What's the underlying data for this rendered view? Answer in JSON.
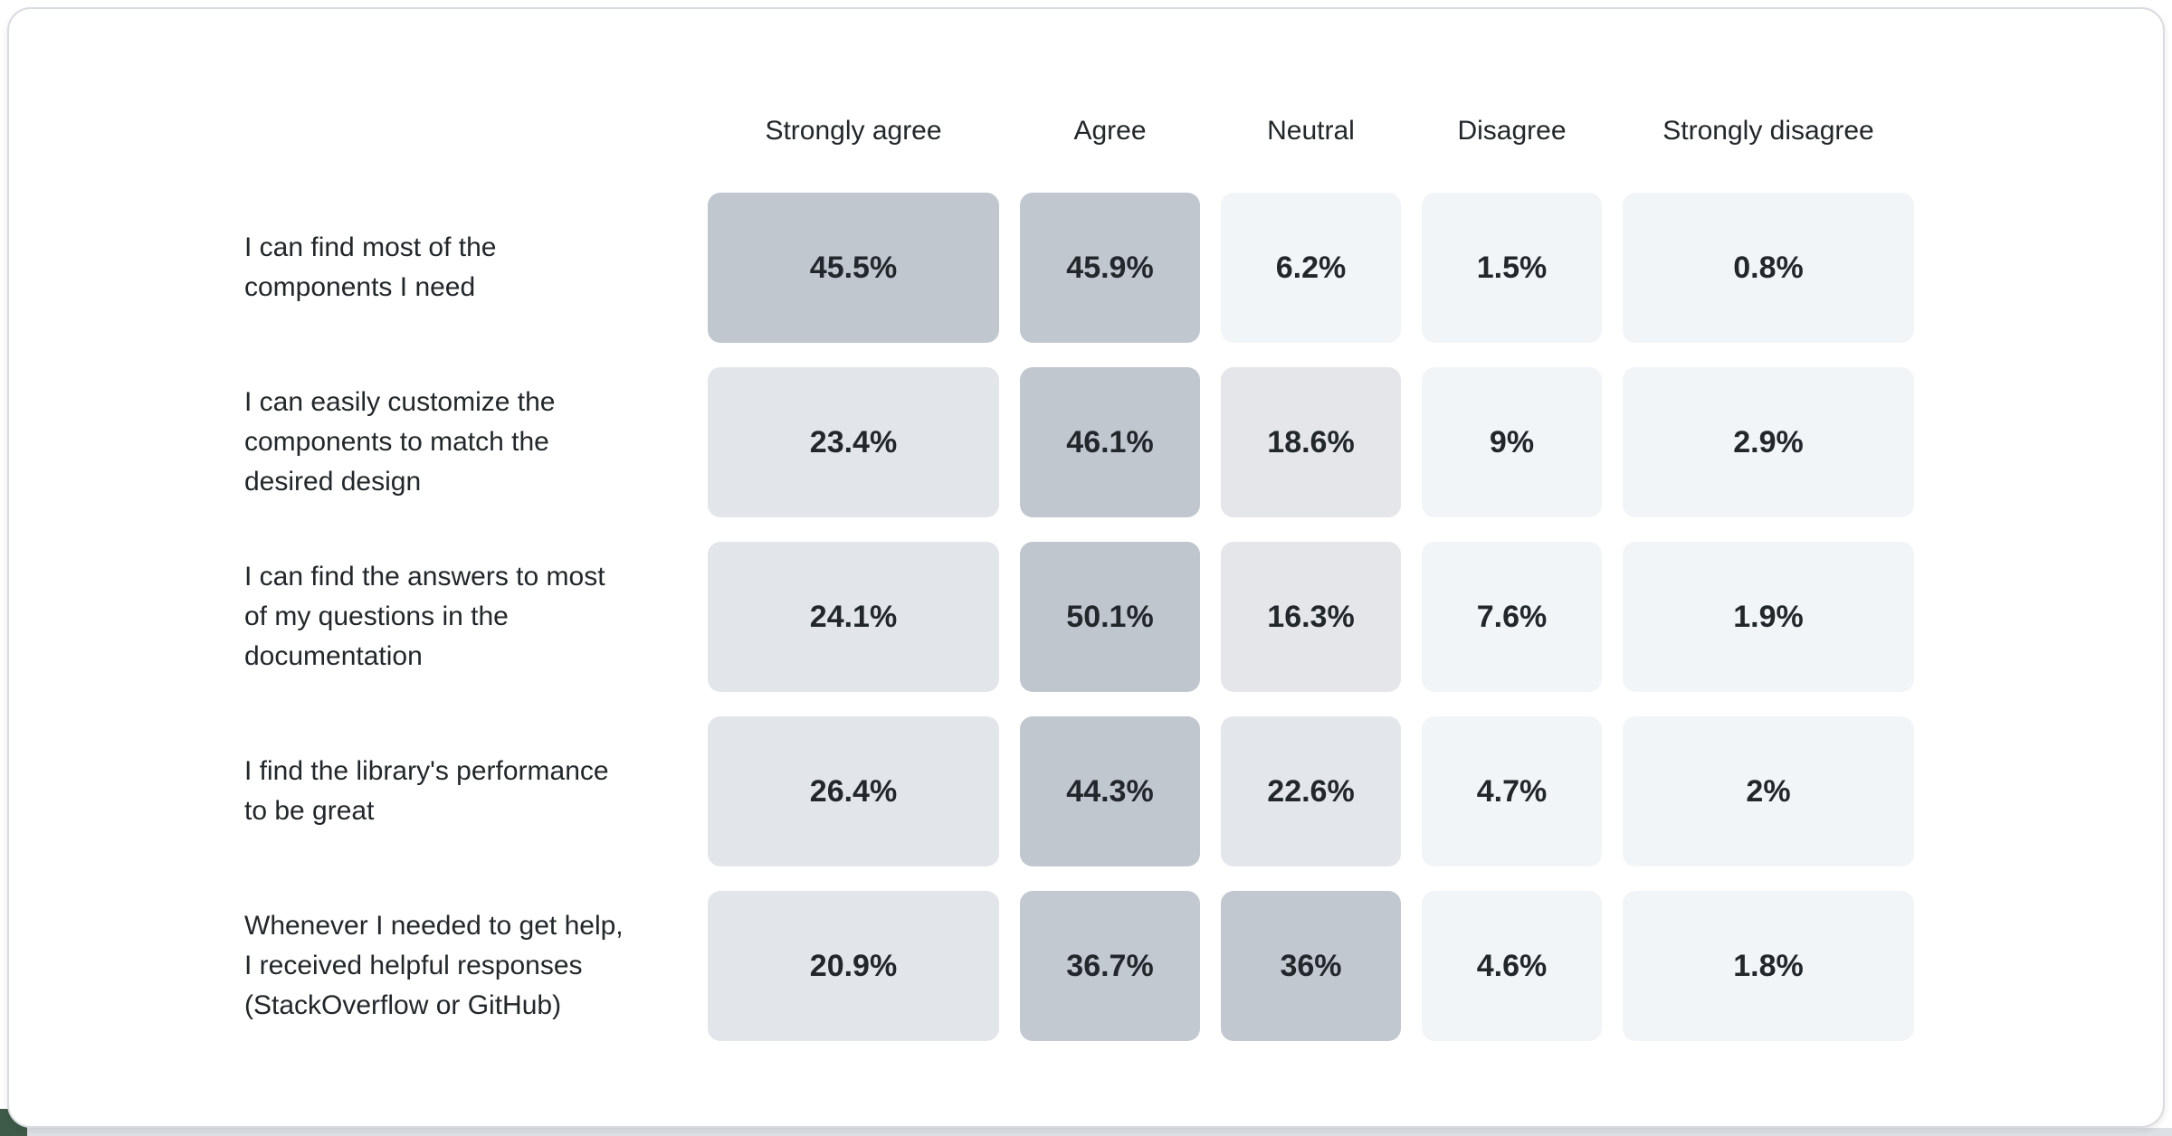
{
  "page": {
    "card_background": "#ffffff",
    "card_border_color": "#d8dbe0",
    "bottom_strip_color": "#dde0e4",
    "corner_accent_color": "#3e5b47",
    "text_color": "#21272a"
  },
  "chart_data": {
    "type": "heatmap",
    "title": "",
    "unit": "%",
    "legend_position": "none",
    "grid": false,
    "columns": [
      "Strongly agree",
      "Agree",
      "Neutral",
      "Disagree",
      "Strongly disagree"
    ],
    "rows": [
      {
        "label": "I can find most of the\ncomponents I need",
        "values": [
          45.5,
          45.9,
          6.2,
          1.5,
          0.8
        ],
        "cells": [
          {
            "value": 45.5,
            "display": "45.5%",
            "color": "#c0c7cf"
          },
          {
            "value": 45.9,
            "display": "45.9%",
            "color": "#c1c7cf"
          },
          {
            "value": 6.2,
            "display": "6.2%",
            "color": "#f2f5f8"
          },
          {
            "value": 1.5,
            "display": "1.5%",
            "color": "#f2f5f8"
          },
          {
            "value": 0.8,
            "display": "0.8%",
            "color": "#f2f5f8"
          }
        ]
      },
      {
        "label": "I can easily customize the\ncomponents to match the\ndesired design",
        "values": [
          23.4,
          46.1,
          18.6,
          9,
          2.9
        ],
        "cells": [
          {
            "value": 23.4,
            "display": "23.4%",
            "color": "#e2e6ea"
          },
          {
            "value": 46.1,
            "display": "46.1%",
            "color": "#c0c7cf"
          },
          {
            "value": 18.6,
            "display": "18.6%",
            "color": "#e4e6ea"
          },
          {
            "value": 9,
            "display": "9%",
            "color": "#f2f5f8"
          },
          {
            "value": 2.9,
            "display": "2.9%",
            "color": "#f2f5f8"
          }
        ]
      },
      {
        "label": "I can find the answers to most\nof my questions in the\ndocumentation",
        "values": [
          24.1,
          50.1,
          16.3,
          7.6,
          1.9
        ],
        "cells": [
          {
            "value": 24.1,
            "display": "24.1%",
            "color": "#e2e6ea"
          },
          {
            "value": 50.1,
            "display": "50.1%",
            "color": "#bfc6ce"
          },
          {
            "value": 16.3,
            "display": "16.3%",
            "color": "#e4e6ea"
          },
          {
            "value": 7.6,
            "display": "7.6%",
            "color": "#f2f5f8"
          },
          {
            "value": 1.9,
            "display": "1.9%",
            "color": "#f2f5f8"
          }
        ]
      },
      {
        "label": "I find the library's performance\nto be great",
        "values": [
          26.4,
          44.3,
          22.6,
          4.7,
          2
        ],
        "cells": [
          {
            "value": 26.4,
            "display": "26.4%",
            "color": "#e2e6ea"
          },
          {
            "value": 44.3,
            "display": "44.3%",
            "color": "#c1c7cf"
          },
          {
            "value": 22.6,
            "display": "22.6%",
            "color": "#e3e6ea"
          },
          {
            "value": 4.7,
            "display": "4.7%",
            "color": "#f2f5f8"
          },
          {
            "value": 2,
            "display": "2%",
            "color": "#f2f5f8"
          }
        ]
      },
      {
        "label": "Whenever I needed to get help,\nI received helpful responses\n(StackOverflow or GitHub)",
        "values": [
          20.9,
          36.7,
          36,
          4.6,
          1.8
        ],
        "cells": [
          {
            "value": 20.9,
            "display": "20.9%",
            "color": "#e2e6ea"
          },
          {
            "value": 36.7,
            "display": "36.7%",
            "color": "#c3c9d1"
          },
          {
            "value": 36,
            "display": "36%",
            "color": "#c2c8d0"
          },
          {
            "value": 4.6,
            "display": "4.6%",
            "color": "#f2f5f8"
          },
          {
            "value": 1.8,
            "display": "1.8%",
            "color": "#f2f5f8"
          }
        ]
      }
    ],
    "palette": {
      "high": "#c0c7cf",
      "mid": "#e2e6ea",
      "low": "#f2f5f8"
    }
  }
}
